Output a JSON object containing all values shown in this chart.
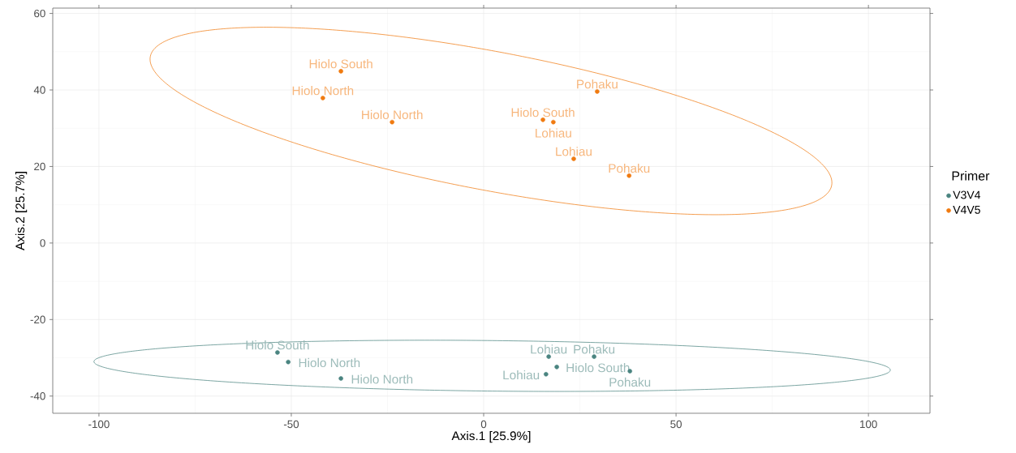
{
  "chart_data": {
    "type": "scatter",
    "xlabel": "Axis.1   [25.9%]",
    "ylabel": "Axis.2   [25.7%]",
    "legend_title": "Primer",
    "xlim": [
      -112,
      116
    ],
    "ylim": [
      -44.5,
      61.4
    ],
    "xticks": [
      -100,
      -50,
      0,
      50,
      100
    ],
    "yticks": [
      -40,
      -20,
      0,
      20,
      40,
      60
    ],
    "grid": true,
    "legend": "right",
    "marker": "circle",
    "series": [
      {
        "name": "V3V4",
        "color": "#4a8480",
        "x": [
          -53.6,
          -50.8,
          -37.1,
          16.9,
          19.0,
          16.2,
          28.7,
          38.0
        ],
        "values": [
          -28.6,
          -31.1,
          -35.4,
          -29.7,
          -32.4,
          -34.3,
          -29.7,
          -33.5
        ],
        "value_labels": [
          "Hiolo South",
          "Hiolo North",
          "Hiolo North",
          "Lohiau",
          "Hiolo South",
          "Lohiau",
          "Pohaku",
          "Pohaku"
        ]
      },
      {
        "name": "V4V5",
        "color": "#f07a10",
        "x": [
          -37.1,
          -41.8,
          -23.8,
          15.4,
          18.1,
          29.5,
          23.4,
          37.8
        ],
        "values": [
          44.9,
          37.9,
          31.6,
          32.2,
          31.6,
          39.6,
          22.0,
          17.6
        ],
        "value_labels": [
          "Hiolo South",
          "Hiolo North",
          "Hiolo North",
          "Hiolo South",
          "Lohiau",
          "Pohaku",
          "Lohiau",
          "Pohaku"
        ]
      }
    ]
  }
}
